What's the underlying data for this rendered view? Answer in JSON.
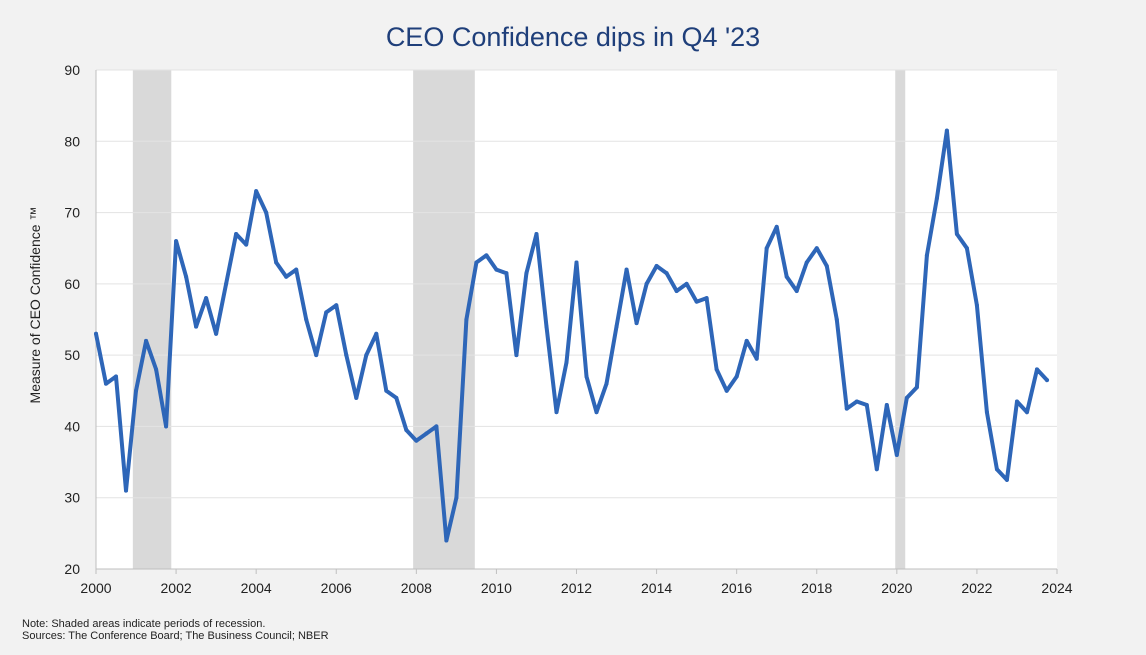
{
  "chart_data": {
    "type": "line",
    "title": "CEO Confidence dips in Q4 '23",
    "ylabel": "Measure of CEO Confidence ™",
    "xlabel": "",
    "xlim": [
      2000,
      2024
    ],
    "ylim": [
      20,
      90
    ],
    "x_ticks": [
      2000,
      2002,
      2004,
      2006,
      2008,
      2010,
      2012,
      2014,
      2016,
      2018,
      2020,
      2022,
      2024
    ],
    "y_ticks": [
      20,
      30,
      40,
      50,
      60,
      70,
      80,
      90
    ],
    "grid": true,
    "recessions": [
      {
        "start": 2000.92,
        "end": 2001.88
      },
      {
        "start": 2007.92,
        "end": 2009.46
      },
      {
        "start": 2019.96,
        "end": 2020.21
      }
    ],
    "series": [
      {
        "color": "#2e66b8",
        "points": [
          [
            2000.0,
            53
          ],
          [
            2000.25,
            46
          ],
          [
            2000.5,
            47
          ],
          [
            2000.75,
            31
          ],
          [
            2001.0,
            45
          ],
          [
            2001.25,
            52
          ],
          [
            2001.5,
            48
          ],
          [
            2001.75,
            40
          ],
          [
            2002.0,
            66
          ],
          [
            2002.25,
            61
          ],
          [
            2002.5,
            54
          ],
          [
            2002.75,
            58
          ],
          [
            2003.0,
            53
          ],
          [
            2003.25,
            60
          ],
          [
            2003.5,
            67
          ],
          [
            2003.75,
            65.5
          ],
          [
            2004.0,
            73
          ],
          [
            2004.25,
            70
          ],
          [
            2004.5,
            63
          ],
          [
            2004.75,
            61
          ],
          [
            2005.0,
            62
          ],
          [
            2005.25,
            55
          ],
          [
            2005.5,
            50
          ],
          [
            2005.75,
            56
          ],
          [
            2006.0,
            57
          ],
          [
            2006.25,
            50
          ],
          [
            2006.5,
            44
          ],
          [
            2006.75,
            50
          ],
          [
            2007.0,
            53
          ],
          [
            2007.25,
            45
          ],
          [
            2007.5,
            44
          ],
          [
            2007.75,
            39.5
          ],
          [
            2008.0,
            38
          ],
          [
            2008.25,
            39
          ],
          [
            2008.5,
            40
          ],
          [
            2008.75,
            24
          ],
          [
            2009.0,
            30
          ],
          [
            2009.25,
            55
          ],
          [
            2009.5,
            63
          ],
          [
            2009.75,
            64
          ],
          [
            2010.0,
            62
          ],
          [
            2010.25,
            61.5
          ],
          [
            2010.5,
            50
          ],
          [
            2010.75,
            61.5
          ],
          [
            2011.0,
            67
          ],
          [
            2011.25,
            54
          ],
          [
            2011.5,
            42
          ],
          [
            2011.75,
            49
          ],
          [
            2012.0,
            63
          ],
          [
            2012.25,
            47
          ],
          [
            2012.5,
            42
          ],
          [
            2012.75,
            46
          ],
          [
            2013.0,
            54
          ],
          [
            2013.25,
            62
          ],
          [
            2013.5,
            54.5
          ],
          [
            2013.75,
            60
          ],
          [
            2014.0,
            62.5
          ],
          [
            2014.25,
            61.5
          ],
          [
            2014.5,
            59
          ],
          [
            2014.75,
            60
          ],
          [
            2015.0,
            57.5
          ],
          [
            2015.25,
            58
          ],
          [
            2015.5,
            48
          ],
          [
            2015.75,
            45
          ],
          [
            2016.0,
            47
          ],
          [
            2016.25,
            52
          ],
          [
            2016.5,
            49.5
          ],
          [
            2016.75,
            65
          ],
          [
            2017.0,
            68
          ],
          [
            2017.25,
            61
          ],
          [
            2017.5,
            59
          ],
          [
            2017.75,
            63
          ],
          [
            2018.0,
            65
          ],
          [
            2018.25,
            62.5
          ],
          [
            2018.5,
            55
          ],
          [
            2018.75,
            42.5
          ],
          [
            2019.0,
            43.5
          ],
          [
            2019.25,
            43
          ],
          [
            2019.5,
            34
          ],
          [
            2019.75,
            43
          ],
          [
            2020.0,
            36
          ],
          [
            2020.25,
            44
          ],
          [
            2020.5,
            45.5
          ],
          [
            2020.75,
            64
          ],
          [
            2021.0,
            72
          ],
          [
            2021.25,
            81.5
          ],
          [
            2021.5,
            67
          ],
          [
            2021.75,
            65
          ],
          [
            2022.0,
            57
          ],
          [
            2022.25,
            42
          ],
          [
            2022.5,
            34
          ],
          [
            2022.75,
            32.5
          ],
          [
            2023.0,
            43.5
          ],
          [
            2023.25,
            42
          ],
          [
            2023.5,
            48
          ],
          [
            2023.75,
            46.5
          ]
        ]
      }
    ]
  },
  "notes": {
    "line1": "Note: Shaded areas indicate periods of  recession.",
    "line2": "Sources: The  Conference Board; The Business Council; NBER"
  }
}
